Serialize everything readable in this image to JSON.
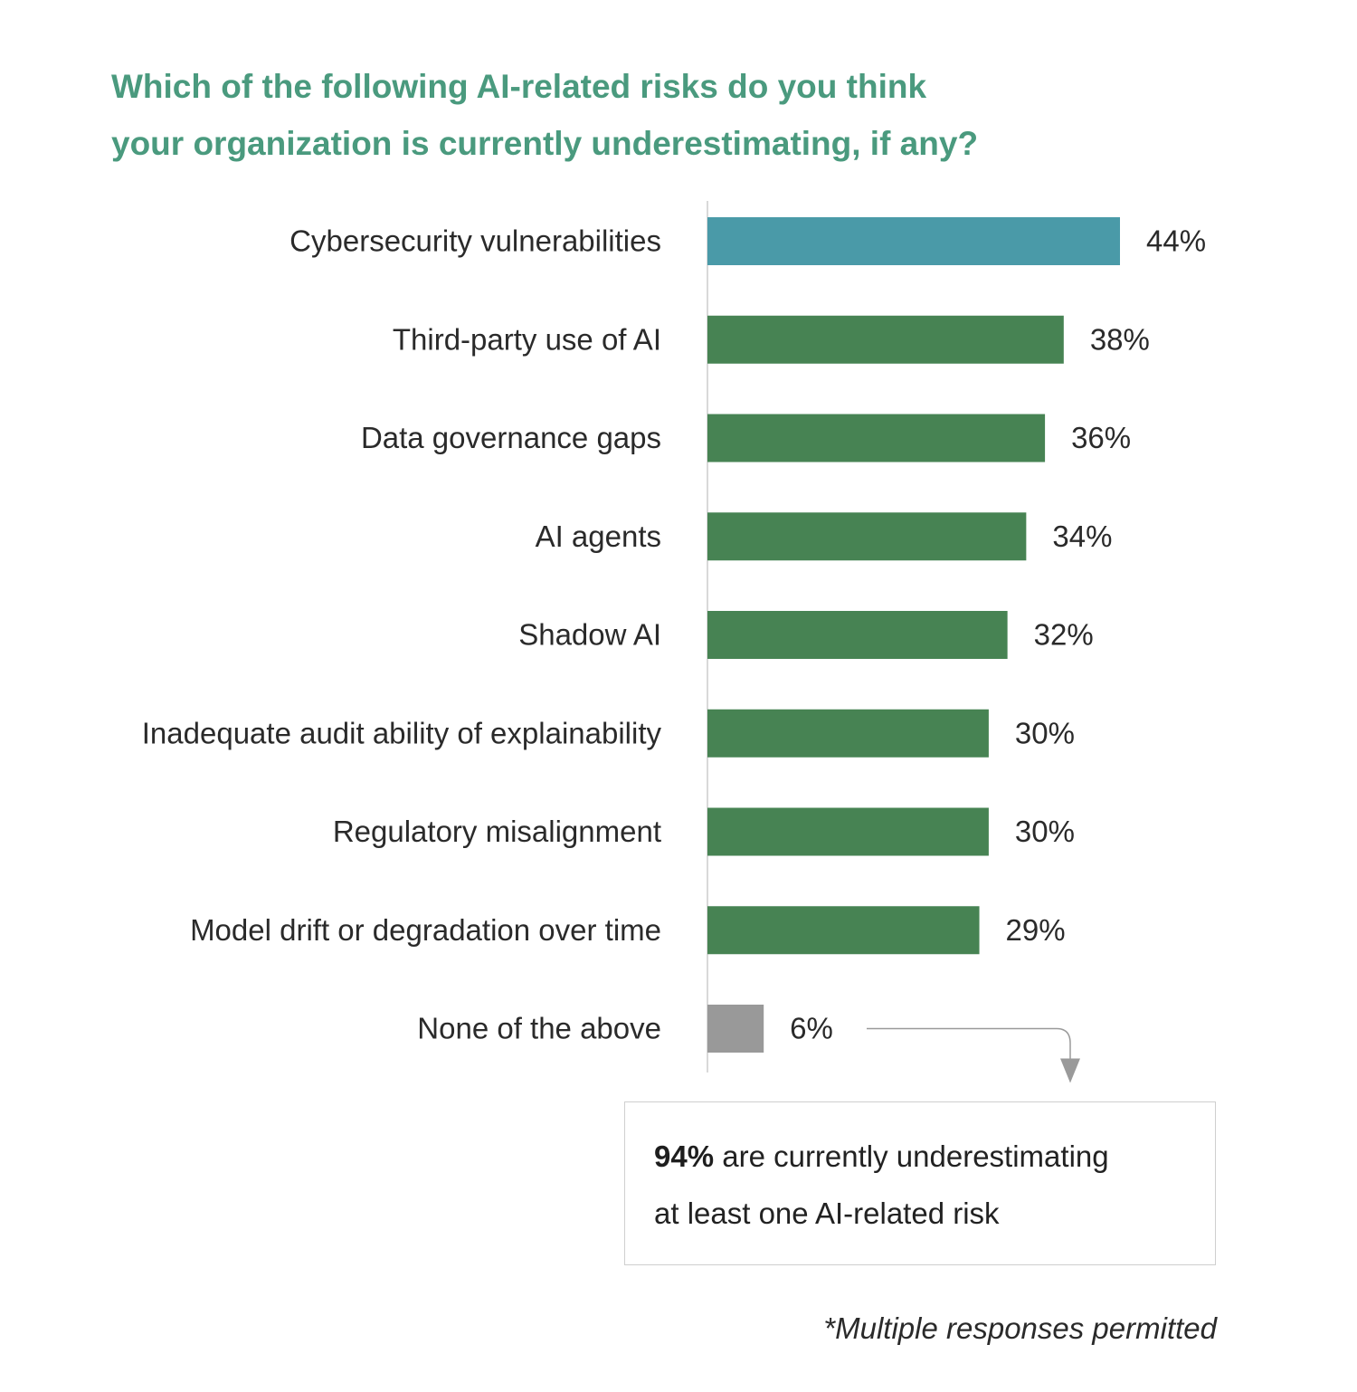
{
  "title_lines": [
    "Which of the following AI-related risks do you think",
    "your organization is currently underestimating, if any?"
  ],
  "callout": {
    "highlight": "94%",
    "text_line1": " are currently underestimating",
    "text_line2": "at least one AI-related risk"
  },
  "footnote": "*Multiple responses permitted",
  "colors": {
    "title": "#4a9a7e",
    "highlight_bar": "#4a9aa8",
    "bar": "#478353",
    "none_bar": "#999999",
    "axis": "#d9d9d9",
    "arrow": "#9a9a9a"
  },
  "chart_data": {
    "type": "bar",
    "orientation": "horizontal",
    "categories": [
      "Cybersecurity vulnerabilities",
      "Third-party use of AI",
      "Data governance gaps",
      "AI agents",
      "Shadow AI",
      "Inadequate audit ability of explainability",
      "Regulatory misalignment",
      "Model drift or degradation over time",
      "None of the above"
    ],
    "values": [
      44,
      38,
      36,
      34,
      32,
      30,
      30,
      29,
      6
    ],
    "value_labels": [
      "44%",
      "38%",
      "36%",
      "34%",
      "32%",
      "30%",
      "30%",
      "29%",
      "6%"
    ],
    "bar_color_keys": [
      "highlight_bar",
      "bar",
      "bar",
      "bar",
      "bar",
      "bar",
      "bar",
      "bar",
      "none_bar"
    ],
    "xlim": [
      0,
      52
    ],
    "grid": false,
    "legend": "none"
  }
}
